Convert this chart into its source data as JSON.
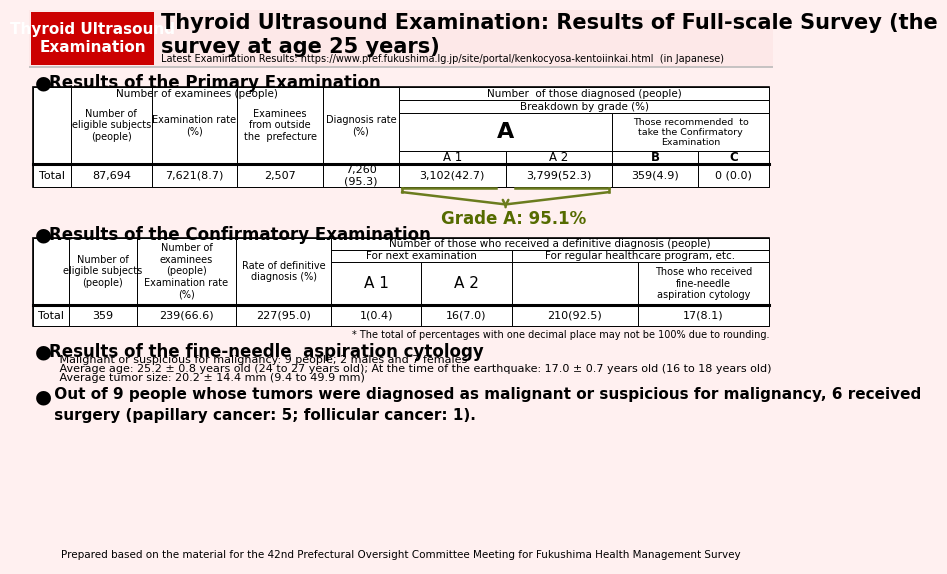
{
  "title_red_box": "Thyroid Ultrasound\nExamination",
  "title_main": "Thyroid Ultrasound Examination: Results of Full-scale Survey (the\nsurvey at age 25 years)",
  "title_url": "Latest Examination Results: https://www.pref.fukushima.lg.jp/site/portal/kenkocyosa-kentoiinkai.html  (in Japanese)",
  "section1_title": "Results of the Primary Examination",
  "section2_title": "Results of the Confirmatory Examination",
  "section3_title": "Results of the fine-needle  aspiration cytology",
  "section3_line1": "   Malignant or suspicious for malignancy: 9 people; 2 males and 7 females",
  "section3_line2": "   Average age: 25.2 ± 0.8 years old (24 to 27 years old); At the time of the earthquake: 17.0 ± 0.7 years old (16 to 18 years old)",
  "section3_line3": "   Average tumor size: 20.2 ± 14.4 mm (9.4 to 49.9 mm)",
  "section4_text": " Out of 9 people whose tumors were diagnosed as malignant or suspicious for malignancy, 6 received\n surgery (papillary cancer: 5; follicular cancer: 1).",
  "footer_text": "Prepared based on the material for the 42nd Prefectural Oversight Committee Meeting for Fukushima Health Management Survey",
  "grade_a_text": "Grade A: 95.1%",
  "rounding_note": "* The total of percentages with one decimal place may not be 100% due to rounding.",
  "bg_color": "#fff0f0",
  "red_color": "#cc0000",
  "olive_color": "#6b7c1e",
  "dark_olive": "#556b00"
}
